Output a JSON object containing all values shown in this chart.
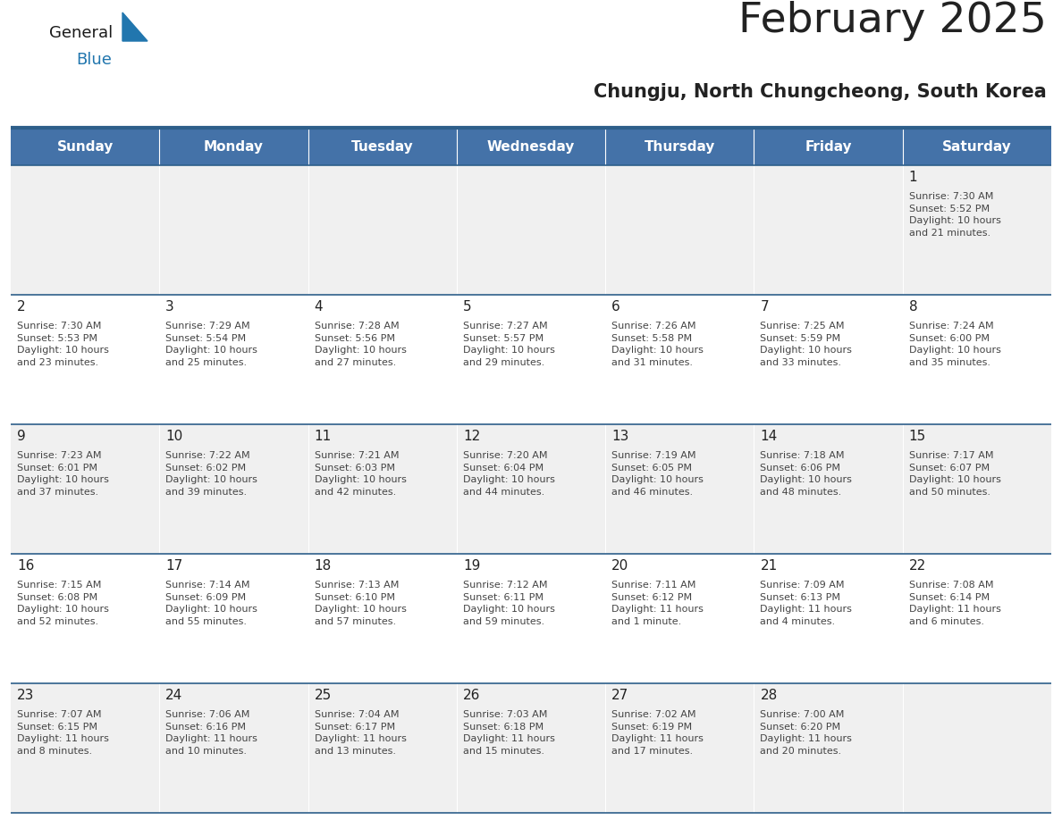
{
  "title": "February 2025",
  "subtitle": "Chungju, North Chungcheong, South Korea",
  "header_bg": "#4472a8",
  "header_text_color": "#ffffff",
  "day_names": [
    "Sunday",
    "Monday",
    "Tuesday",
    "Wednesday",
    "Thursday",
    "Friday",
    "Saturday"
  ],
  "row_bg_odd": "#f0f0f0",
  "row_bg_even": "#ffffff",
  "cell_text_color": "#444444",
  "date_text_color": "#222222",
  "grid_line_color": "#2e5f8a",
  "logo_general_color": "#1a1a1a",
  "logo_blue_color": "#2176ae",
  "logo_triangle_color": "#2176ae",
  "title_fontsize": 34,
  "subtitle_fontsize": 15,
  "day_header_fontsize": 11,
  "date_fontsize": 11,
  "info_fontsize": 8,
  "weeks": [
    {
      "days": [
        {
          "date": null,
          "info": null
        },
        {
          "date": null,
          "info": null
        },
        {
          "date": null,
          "info": null
        },
        {
          "date": null,
          "info": null
        },
        {
          "date": null,
          "info": null
        },
        {
          "date": null,
          "info": null
        },
        {
          "date": 1,
          "info": "Sunrise: 7:30 AM\nSunset: 5:52 PM\nDaylight: 10 hours\nand 21 minutes."
        }
      ]
    },
    {
      "days": [
        {
          "date": 2,
          "info": "Sunrise: 7:30 AM\nSunset: 5:53 PM\nDaylight: 10 hours\nand 23 minutes."
        },
        {
          "date": 3,
          "info": "Sunrise: 7:29 AM\nSunset: 5:54 PM\nDaylight: 10 hours\nand 25 minutes."
        },
        {
          "date": 4,
          "info": "Sunrise: 7:28 AM\nSunset: 5:56 PM\nDaylight: 10 hours\nand 27 minutes."
        },
        {
          "date": 5,
          "info": "Sunrise: 7:27 AM\nSunset: 5:57 PM\nDaylight: 10 hours\nand 29 minutes."
        },
        {
          "date": 6,
          "info": "Sunrise: 7:26 AM\nSunset: 5:58 PM\nDaylight: 10 hours\nand 31 minutes."
        },
        {
          "date": 7,
          "info": "Sunrise: 7:25 AM\nSunset: 5:59 PM\nDaylight: 10 hours\nand 33 minutes."
        },
        {
          "date": 8,
          "info": "Sunrise: 7:24 AM\nSunset: 6:00 PM\nDaylight: 10 hours\nand 35 minutes."
        }
      ]
    },
    {
      "days": [
        {
          "date": 9,
          "info": "Sunrise: 7:23 AM\nSunset: 6:01 PM\nDaylight: 10 hours\nand 37 minutes."
        },
        {
          "date": 10,
          "info": "Sunrise: 7:22 AM\nSunset: 6:02 PM\nDaylight: 10 hours\nand 39 minutes."
        },
        {
          "date": 11,
          "info": "Sunrise: 7:21 AM\nSunset: 6:03 PM\nDaylight: 10 hours\nand 42 minutes."
        },
        {
          "date": 12,
          "info": "Sunrise: 7:20 AM\nSunset: 6:04 PM\nDaylight: 10 hours\nand 44 minutes."
        },
        {
          "date": 13,
          "info": "Sunrise: 7:19 AM\nSunset: 6:05 PM\nDaylight: 10 hours\nand 46 minutes."
        },
        {
          "date": 14,
          "info": "Sunrise: 7:18 AM\nSunset: 6:06 PM\nDaylight: 10 hours\nand 48 minutes."
        },
        {
          "date": 15,
          "info": "Sunrise: 7:17 AM\nSunset: 6:07 PM\nDaylight: 10 hours\nand 50 minutes."
        }
      ]
    },
    {
      "days": [
        {
          "date": 16,
          "info": "Sunrise: 7:15 AM\nSunset: 6:08 PM\nDaylight: 10 hours\nand 52 minutes."
        },
        {
          "date": 17,
          "info": "Sunrise: 7:14 AM\nSunset: 6:09 PM\nDaylight: 10 hours\nand 55 minutes."
        },
        {
          "date": 18,
          "info": "Sunrise: 7:13 AM\nSunset: 6:10 PM\nDaylight: 10 hours\nand 57 minutes."
        },
        {
          "date": 19,
          "info": "Sunrise: 7:12 AM\nSunset: 6:11 PM\nDaylight: 10 hours\nand 59 minutes."
        },
        {
          "date": 20,
          "info": "Sunrise: 7:11 AM\nSunset: 6:12 PM\nDaylight: 11 hours\nand 1 minute."
        },
        {
          "date": 21,
          "info": "Sunrise: 7:09 AM\nSunset: 6:13 PM\nDaylight: 11 hours\nand 4 minutes."
        },
        {
          "date": 22,
          "info": "Sunrise: 7:08 AM\nSunset: 6:14 PM\nDaylight: 11 hours\nand 6 minutes."
        }
      ]
    },
    {
      "days": [
        {
          "date": 23,
          "info": "Sunrise: 7:07 AM\nSunset: 6:15 PM\nDaylight: 11 hours\nand 8 minutes."
        },
        {
          "date": 24,
          "info": "Sunrise: 7:06 AM\nSunset: 6:16 PM\nDaylight: 11 hours\nand 10 minutes."
        },
        {
          "date": 25,
          "info": "Sunrise: 7:04 AM\nSunset: 6:17 PM\nDaylight: 11 hours\nand 13 minutes."
        },
        {
          "date": 26,
          "info": "Sunrise: 7:03 AM\nSunset: 6:18 PM\nDaylight: 11 hours\nand 15 minutes."
        },
        {
          "date": 27,
          "info": "Sunrise: 7:02 AM\nSunset: 6:19 PM\nDaylight: 11 hours\nand 17 minutes."
        },
        {
          "date": 28,
          "info": "Sunrise: 7:00 AM\nSunset: 6:20 PM\nDaylight: 11 hours\nand 20 minutes."
        },
        {
          "date": null,
          "info": null
        }
      ]
    }
  ]
}
